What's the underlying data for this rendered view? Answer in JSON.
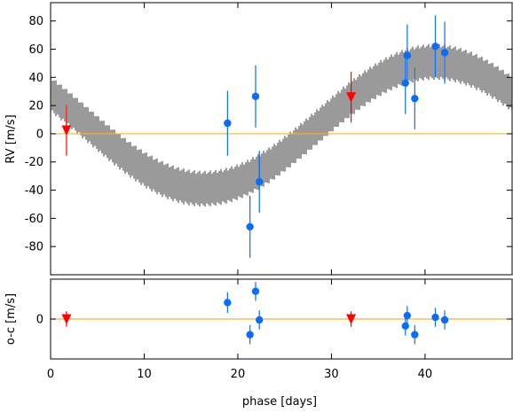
{
  "chart_data": {
    "type": "scatter",
    "xlabel": "phase [days]",
    "xlim": [
      0,
      49.3
    ],
    "xticks": [
      0,
      10,
      20,
      30,
      40
    ],
    "upper": {
      "ylabel": "RV [m/s]",
      "ylim": [
        -100,
        93
      ],
      "yticks": [
        80,
        60,
        40,
        20,
        0,
        -20,
        -40,
        -60,
        -80
      ],
      "zero_line": 0,
      "model_band": {
        "color": "#808080",
        "description": "sinusoid model envelope",
        "center_offset": 6.0,
        "amplitude": 45.0,
        "period": 49.3,
        "phase_max_at": 41.0,
        "half_width": 10.5
      },
      "series": [
        {
          "marker": "circle",
          "color": "#0b6ef2",
          "points": [
            {
              "x": 18.9,
              "y": 7.5,
              "err": 23
            },
            {
              "x": 21.3,
              "y": -66,
              "err": 22
            },
            {
              "x": 21.9,
              "y": 26.5,
              "err": 22
            },
            {
              "x": 22.3,
              "y": -34,
              "err": 22
            },
            {
              "x": 37.9,
              "y": 36,
              "err": 22
            },
            {
              "x": 38.1,
              "y": 55.5,
              "err": 22
            },
            {
              "x": 38.9,
              "y": 25,
              "err": 22
            },
            {
              "x": 41.1,
              "y": 62,
              "err": 22
            },
            {
              "x": 42.1,
              "y": 57.5,
              "err": 22
            }
          ]
        },
        {
          "marker": "triangle-down",
          "color": "#ff0000",
          "points": [
            {
              "x": 1.7,
              "y": 2.5,
              "err": 18
            },
            {
              "x": 32.1,
              "y": 26,
              "err": 18
            }
          ]
        }
      ]
    },
    "lower": {
      "ylabel": "o-c [m/s]",
      "ylim": [
        -46,
        46
      ],
      "yticks": [
        0
      ],
      "zero_line": 0,
      "series": [
        {
          "marker": "circle",
          "color": "#0b6ef2",
          "points": [
            {
              "x": 18.9,
              "y": 19,
              "err": 12
            },
            {
              "x": 21.3,
              "y": -18,
              "err": 11
            },
            {
              "x": 21.9,
              "y": 32,
              "err": 11
            },
            {
              "x": 22.3,
              "y": -1,
              "err": 11
            },
            {
              "x": 37.9,
              "y": -8,
              "err": 11
            },
            {
              "x": 38.1,
              "y": 4,
              "err": 11
            },
            {
              "x": 38.9,
              "y": -18,
              "err": 11
            },
            {
              "x": 41.1,
              "y": 2,
              "err": 11
            },
            {
              "x": 42.1,
              "y": -1,
              "err": 11
            }
          ]
        },
        {
          "marker": "triangle-down",
          "color": "#ff0000",
          "points": [
            {
              "x": 1.7,
              "y": 0,
              "err": 9
            },
            {
              "x": 32.1,
              "y": 0,
              "err": 9
            }
          ]
        }
      ]
    },
    "zero_line_color": "#f5b041"
  }
}
